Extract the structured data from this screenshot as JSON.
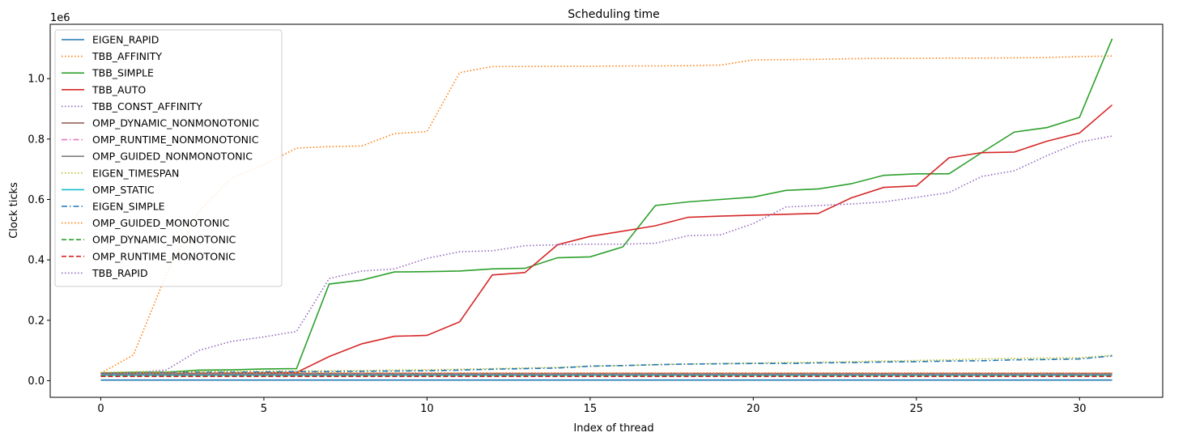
{
  "chart_data": {
    "type": "line",
    "title": "Scheduling time",
    "xlabel": "Index of thread",
    "ylabel": "Clock ticks",
    "y_offset_label": "1e6",
    "xlim": [
      -1.55,
      32.55
    ],
    "ylim": [
      -55000,
      1180000
    ],
    "x_ticks": [
      0,
      5,
      10,
      15,
      20,
      25,
      30
    ],
    "y_ticks": [
      0,
      200000,
      400000,
      600000,
      800000,
      1000000
    ],
    "y_tick_labels": [
      "0.0",
      "0.2",
      "0.4",
      "0.6",
      "0.8",
      "1.0"
    ],
    "grid": false,
    "legend_position": "upper-left",
    "x": [
      0,
      1,
      2,
      3,
      4,
      5,
      6,
      7,
      8,
      9,
      10,
      11,
      12,
      13,
      14,
      15,
      16,
      17,
      18,
      19,
      20,
      21,
      22,
      23,
      24,
      25,
      26,
      27,
      28,
      29,
      30,
      31
    ],
    "series": [
      {
        "name": "EIGEN_RAPID",
        "color": "#1f77b4",
        "dash": "solid",
        "values": [
          2000,
          2000,
          2000,
          2000,
          2000,
          2000,
          2000,
          2000,
          2000,
          2000,
          2000,
          2000,
          2000,
          2000,
          2000,
          2000,
          2000,
          2000,
          2000,
          2000,
          2000,
          2000,
          2000,
          2000,
          2000,
          2000,
          2000,
          2000,
          2000,
          2000,
          2000,
          2000
        ]
      },
      {
        "name": "TBB_AFFINITY",
        "color": "#ff7f0e",
        "dash": "dotted",
        "values": [
          25000,
          85000,
          350000,
          560000,
          670000,
          715000,
          770000,
          775000,
          777000,
          818000,
          825000,
          1020000,
          1040000,
          1040000,
          1041000,
          1041000,
          1042000,
          1042000,
          1043000,
          1045000,
          1062000,
          1063000,
          1064000,
          1066000,
          1067000,
          1067000,
          1068000,
          1068000,
          1069000,
          1070000,
          1073000,
          1075000
        ]
      },
      {
        "name": "TBB_SIMPLE",
        "color": "#2ca02c",
        "dash": "solid",
        "values": [
          25000,
          28000,
          28000,
          35000,
          36000,
          39000,
          40000,
          320000,
          333000,
          360000,
          361000,
          363000,
          370000,
          372000,
          407000,
          410000,
          443000,
          580000,
          592000,
          600000,
          608000,
          630000,
          635000,
          652000,
          680000,
          685000,
          685000,
          755000,
          823000,
          838000,
          872000,
          1132000
        ]
      },
      {
        "name": "TBB_AUTO",
        "color": "#d62728",
        "dash": "solid",
        "values": [
          20000,
          22000,
          22000,
          24000,
          25000,
          26000,
          27000,
          80000,
          122000,
          147000,
          150000,
          195000,
          350000,
          358000,
          450000,
          478000,
          495000,
          513000,
          541000,
          545000,
          548000,
          551000,
          554000,
          605000,
          640000,
          645000,
          738000,
          755000,
          757000,
          793000,
          820000,
          913000
        ]
      },
      {
        "name": "TBB_CONST_AFFINITY",
        "color": "#9467bd",
        "dash": "dotted",
        "values": [
          25000,
          28000,
          35000,
          100000,
          130000,
          145000,
          163000,
          338000,
          363000,
          370000,
          405000,
          427000,
          430000,
          447000,
          450000,
          452000,
          452000,
          455000,
          480000,
          483000,
          520000,
          575000,
          580000,
          585000,
          592000,
          607000,
          623000,
          676000,
          695000,
          745000,
          790000,
          810000
        ]
      },
      {
        "name": "OMP_DYNAMIC_NONMONOTONIC",
        "color": "#8c564b",
        "dash": "solid",
        "values": [
          24000,
          24000,
          24000,
          24000,
          24000,
          24000,
          24000,
          24000,
          24000,
          24000,
          24000,
          24000,
          24000,
          24000,
          24000,
          24000,
          24000,
          24000,
          24000,
          24000,
          24000,
          24000,
          24000,
          24000,
          24000,
          24000,
          24000,
          24000,
          24000,
          24000,
          24000,
          24000
        ]
      },
      {
        "name": "OMP_RUNTIME_NONMONOTONIC",
        "color": "#e377c2",
        "dash": "dashdot",
        "values": [
          22000,
          22000,
          22000,
          22000,
          22000,
          22000,
          22000,
          22000,
          22000,
          22000,
          22000,
          22000,
          22000,
          22000,
          22000,
          22000,
          22000,
          22000,
          22000,
          22000,
          22000,
          22000,
          22000,
          22000,
          22000,
          22000,
          22000,
          22000,
          22000,
          22000,
          22000,
          22000
        ]
      },
      {
        "name": "OMP_GUIDED_NONMONOTONIC",
        "color": "#7f7f7f",
        "dash": "solid",
        "values": [
          21000,
          21000,
          21000,
          21000,
          21000,
          21000,
          21000,
          21000,
          21000,
          21000,
          21000,
          21000,
          21000,
          21000,
          21000,
          21000,
          21000,
          21000,
          21000,
          21000,
          21000,
          21000,
          21000,
          21000,
          21000,
          21000,
          21000,
          21000,
          21000,
          21000,
          21000,
          21000
        ]
      },
      {
        "name": "EIGEN_TIMESPAN",
        "color": "#bcbd22",
        "dash": "dotted",
        "values": [
          28000,
          29000,
          30000,
          31000,
          31000,
          32000,
          32000,
          33000,
          34000,
          35000,
          36000,
          38000,
          40000,
          42000,
          44000,
          48000,
          50000,
          53000,
          55000,
          57000,
          58000,
          60000,
          61000,
          63000,
          65000,
          67000,
          69000,
          72000,
          74000,
          75000,
          76000,
          84000
        ]
      },
      {
        "name": "OMP_STATIC",
        "color": "#17becf",
        "dash": "solid",
        "values": [
          18000,
          18000,
          18000,
          18000,
          18000,
          18000,
          18000,
          18000,
          18000,
          18000,
          18000,
          18000,
          18000,
          18000,
          18000,
          18000,
          18000,
          18000,
          18000,
          18000,
          18000,
          18000,
          18000,
          18000,
          18000,
          18000,
          18000,
          18000,
          18000,
          18000,
          18000,
          18000
        ]
      },
      {
        "name": "EIGEN_SIMPLE",
        "color": "#1f77b4",
        "dash": "dashdot",
        "values": [
          25000,
          26000,
          27000,
          28000,
          28000,
          29000,
          30000,
          30000,
          31000,
          32000,
          33000,
          35000,
          38000,
          40000,
          42000,
          48000,
          50000,
          53000,
          55000,
          56000,
          57000,
          57000,
          59000,
          60000,
          62000,
          63000,
          65000,
          66000,
          69000,
          70000,
          72000,
          82000
        ]
      },
      {
        "name": "OMP_GUIDED_MONOTONIC",
        "color": "#ff7f0e",
        "dash": "dotted",
        "values": [
          26000,
          26000,
          26000,
          26000,
          26000,
          26000,
          26000,
          26000,
          26000,
          26000,
          26000,
          26000,
          26000,
          26000,
          26000,
          26000,
          26000,
          26000,
          26000,
          26000,
          26000,
          26000,
          26000,
          26000,
          26000,
          26000,
          26000,
          26000,
          26000,
          26000,
          26000,
          26000
        ]
      },
      {
        "name": "OMP_DYNAMIC_MONOTONIC",
        "color": "#2ca02c",
        "dash": "dashed",
        "values": [
          16000,
          16000,
          16000,
          16000,
          16000,
          16000,
          16000,
          16000,
          16000,
          16000,
          16000,
          16000,
          16000,
          16000,
          16000,
          16000,
          16000,
          16000,
          16000,
          16000,
          16000,
          16000,
          16000,
          16000,
          16000,
          16000,
          16000,
          16000,
          16000,
          16000,
          16000,
          16000
        ]
      },
      {
        "name": "OMP_RUNTIME_MONOTONIC",
        "color": "#d62728",
        "dash": "dashed",
        "values": [
          14000,
          14000,
          14000,
          14000,
          14000,
          14000,
          14000,
          14000,
          14000,
          14000,
          14000,
          14000,
          14000,
          14000,
          14000,
          14000,
          14000,
          14000,
          14000,
          14000,
          14000,
          14000,
          14000,
          14000,
          14000,
          14000,
          14000,
          14000,
          14000,
          14000,
          14000,
          14000
        ]
      },
      {
        "name": "TBB_RAPID",
        "color": "#9467bd",
        "dash": "dotted",
        "values": [
          20000,
          20000,
          20000,
          20000,
          20000,
          20000,
          20000,
          20000,
          20000,
          20000,
          20000,
          20000,
          20000,
          20000,
          20000,
          20000,
          20000,
          20000,
          20000,
          20000,
          20000,
          20000,
          20000,
          20000,
          20000,
          20000,
          20000,
          20000,
          20000,
          20000,
          20000,
          20000
        ]
      }
    ]
  }
}
